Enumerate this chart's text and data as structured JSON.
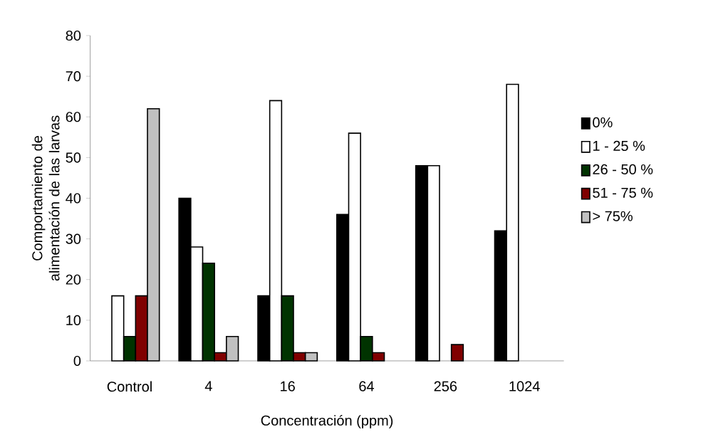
{
  "chart_data": {
    "type": "bar",
    "xlabel": "Concentración (ppm)",
    "ylabel": "Comportamiento de alimentación de las larvas",
    "categories": [
      "Control",
      "4",
      "16",
      "64",
      "256",
      "1024"
    ],
    "series": [
      {
        "name": "0%",
        "color": "#000000",
        "values": [
          null,
          40,
          16,
          36,
          48,
          32
        ]
      },
      {
        "name": "1 - 25 %",
        "color": "#ffffff",
        "values": [
          16,
          28,
          64,
          56,
          48,
          68
        ]
      },
      {
        "name": "26 - 50 %",
        "color": "#003300",
        "values": [
          6,
          24,
          16,
          6,
          null,
          null
        ]
      },
      {
        "name": "51 - 75 %",
        "color": "#800000",
        "values": [
          16,
          2,
          2,
          2,
          4,
          null
        ]
      },
      {
        "name": "> 75%",
        "color": "#c0c0c0",
        "values": [
          62,
          6,
          2,
          null,
          null,
          null
        ]
      }
    ],
    "ylim": [
      0,
      80
    ],
    "yticks": [
      0,
      10,
      20,
      30,
      40,
      50,
      60,
      70,
      80
    ],
    "grid": false,
    "legend": "right"
  }
}
